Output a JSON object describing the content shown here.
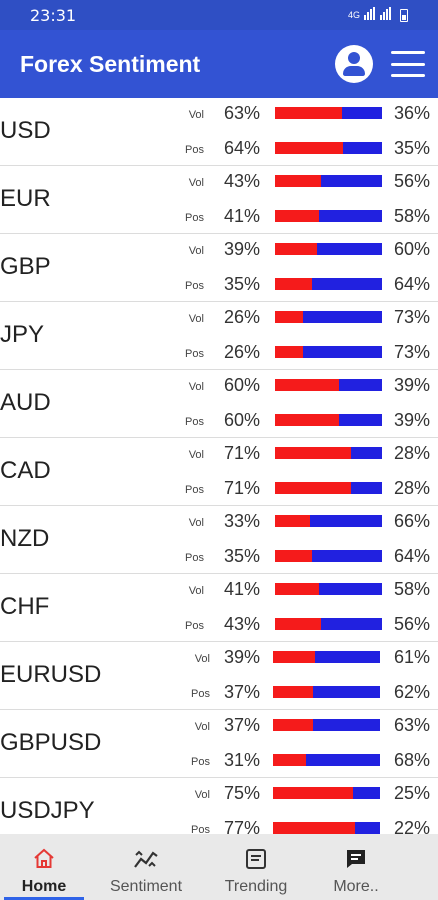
{
  "status_bar": {
    "time": "23:31",
    "net": "4G"
  },
  "app_bar": {
    "title": "Forex Sentiment"
  },
  "rows": [
    {
      "name": "USD",
      "vol": "63%",
      "vol_other": "36%",
      "vol_frac": 0.63,
      "pos": "64%",
      "pos_other": "35%",
      "pos_frac": 0.64
    },
    {
      "name": "EUR",
      "vol": "43%",
      "vol_other": "56%",
      "vol_frac": 0.43,
      "pos": "41%",
      "pos_other": "58%",
      "pos_frac": 0.41
    },
    {
      "name": "GBP",
      "vol": "39%",
      "vol_other": "60%",
      "vol_frac": 0.39,
      "pos": "35%",
      "pos_other": "64%",
      "pos_frac": 0.35
    },
    {
      "name": "JPY",
      "vol": "26%",
      "vol_other": "73%",
      "vol_frac": 0.26,
      "pos": "26%",
      "pos_other": "73%",
      "pos_frac": 0.26
    },
    {
      "name": "AUD",
      "vol": "60%",
      "vol_other": "39%",
      "vol_frac": 0.6,
      "pos": "60%",
      "pos_other": "39%",
      "pos_frac": 0.6
    },
    {
      "name": "CAD",
      "vol": "71%",
      "vol_other": "28%",
      "vol_frac": 0.71,
      "pos": "71%",
      "pos_other": "28%",
      "pos_frac": 0.71
    },
    {
      "name": "NZD",
      "vol": "33%",
      "vol_other": "66%",
      "vol_frac": 0.33,
      "pos": "35%",
      "pos_other": "64%",
      "pos_frac": 0.35
    },
    {
      "name": "CHF",
      "vol": "41%",
      "vol_other": "58%",
      "vol_frac": 0.41,
      "pos": "43%",
      "pos_other": "56%",
      "pos_frac": 0.43
    },
    {
      "name": "EURUSD",
      "vol": "39%",
      "vol_other": "61%",
      "vol_frac": 0.39,
      "pos": "37%",
      "pos_other": "62%",
      "pos_frac": 0.37
    },
    {
      "name": "GBPUSD",
      "vol": "37%",
      "vol_other": "63%",
      "vol_frac": 0.37,
      "pos": "31%",
      "pos_other": "68%",
      "pos_frac": 0.31
    },
    {
      "name": "USDJPY",
      "vol": "75%",
      "vol_other": "25%",
      "vol_frac": 0.75,
      "pos": "77%",
      "pos_other": "22%",
      "pos_frac": 0.77
    }
  ],
  "labels": {
    "vol": "Vol",
    "pos": "Pos"
  },
  "colors": {
    "long": "#f51b1b",
    "short": "#2121e0",
    "accent": "#3353d3",
    "active_tab": "#2f63e8"
  },
  "bottom_nav": [
    {
      "label": "Home",
      "icon": "home-icon",
      "active": true
    },
    {
      "label": "Sentiment",
      "icon": "sentiment-chart-icon",
      "active": false
    },
    {
      "label": "Trending",
      "icon": "trending-list-icon",
      "active": false
    },
    {
      "label": "More..",
      "icon": "chat-icon",
      "active": false
    }
  ]
}
